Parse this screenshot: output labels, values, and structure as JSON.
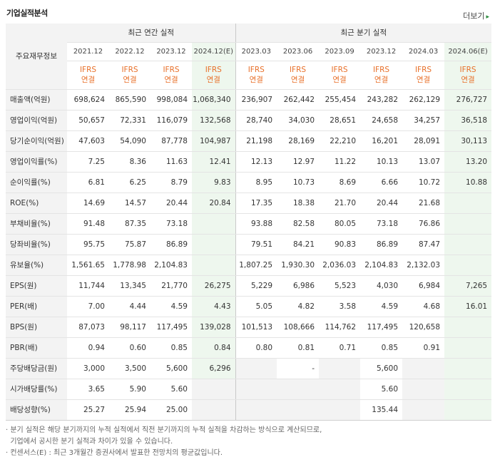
{
  "header": {
    "title": "기업실적분석",
    "more_label": "더보기",
    "more_arrow": "▸"
  },
  "table": {
    "corner_label": "주요재무정보",
    "groups": [
      "최근 연간 실적",
      "최근 분기 실적"
    ],
    "periods": [
      "2021.12",
      "2022.12",
      "2023.12",
      "2024.12(E)",
      "2023.03",
      "2023.06",
      "2023.09",
      "2023.12",
      "2024.03",
      "2024.06(E)"
    ],
    "basis": [
      "IFRS\n연결",
      "IFRS\n연결",
      "IFRS\n연결",
      "IFRS\n연결",
      "IFRS\n연결",
      "IFRS\n연결",
      "IFRS\n연결",
      "IFRS\n연결",
      "IFRS\n연결",
      "IFRS\n연결"
    ],
    "rows": [
      {
        "label": "매출액(억원)",
        "values": [
          "698,624",
          "865,590",
          "998,084",
          "1,068,340",
          "236,907",
          "262,442",
          "255,454",
          "243,282",
          "262,129",
          "276,727"
        ]
      },
      {
        "label": "영업이익(억원)",
        "values": [
          "50,657",
          "72,331",
          "116,079",
          "132,568",
          "28,740",
          "34,030",
          "28,651",
          "24,658",
          "34,257",
          "36,518"
        ]
      },
      {
        "label": "당기순이익(억원)",
        "values": [
          "47,603",
          "54,090",
          "87,778",
          "104,987",
          "21,198",
          "28,169",
          "22,210",
          "16,201",
          "28,091",
          "30,113"
        ]
      },
      {
        "label": "영업이익률(%)",
        "values": [
          "7.25",
          "8.36",
          "11.63",
          "12.41",
          "12.13",
          "12.97",
          "11.22",
          "10.13",
          "13.07",
          "13.20"
        ]
      },
      {
        "label": "순이익률(%)",
        "values": [
          "6.81",
          "6.25",
          "8.79",
          "9.83",
          "8.95",
          "10.73",
          "8.69",
          "6.66",
          "10.72",
          "10.88"
        ]
      },
      {
        "label": "ROE(%)",
        "values": [
          "14.69",
          "14.57",
          "20.44",
          "20.84",
          "17.35",
          "18.38",
          "21.70",
          "20.44",
          "21.68",
          ""
        ]
      },
      {
        "label": "부채비율(%)",
        "values": [
          "91.48",
          "87.35",
          "73.18",
          "",
          "93.88",
          "82.58",
          "80.05",
          "73.18",
          "76.86",
          ""
        ]
      },
      {
        "label": "당좌비율(%)",
        "values": [
          "95.75",
          "75.87",
          "86.89",
          "",
          "79.51",
          "84.21",
          "90.83",
          "86.89",
          "87.47",
          ""
        ]
      },
      {
        "label": "유보율(%)",
        "values": [
          "1,561.65",
          "1,778.98",
          "2,104.83",
          "",
          "1,807.25",
          "1,930.30",
          "2,036.03",
          "2,104.83",
          "2,132.03",
          ""
        ]
      },
      {
        "label": "EPS(원)",
        "values": [
          "11,744",
          "13,345",
          "21,770",
          "26,275",
          "5,229",
          "6,986",
          "5,523",
          "4,030",
          "6,984",
          "7,265"
        ]
      },
      {
        "label": "PER(배)",
        "values": [
          "7.00",
          "4.44",
          "4.59",
          "4.43",
          "5.05",
          "4.82",
          "3.58",
          "4.59",
          "4.68",
          "16.01"
        ]
      },
      {
        "label": "BPS(원)",
        "values": [
          "87,073",
          "98,117",
          "117,495",
          "139,028",
          "101,513",
          "108,666",
          "114,762",
          "117,495",
          "120,658",
          ""
        ]
      },
      {
        "label": "PBR(배)",
        "values": [
          "0.94",
          "0.60",
          "0.85",
          "0.84",
          "0.80",
          "0.81",
          "0.71",
          "0.85",
          "0.91",
          ""
        ]
      },
      {
        "label": "주당배당금(원)",
        "values": [
          "3,000",
          "3,500",
          "5,600",
          "6,296",
          "",
          "-",
          "",
          "5,600",
          "",
          ""
        ]
      },
      {
        "label": "시가배당률(%)",
        "values": [
          "3.65",
          "5.90",
          "5.60",
          "",
          "",
          "",
          "",
          "5.60",
          "",
          ""
        ]
      },
      {
        "label": "배당성향(%)",
        "values": [
          "25.27",
          "25.94",
          "25.00",
          "",
          "",
          "",
          "",
          "135.44",
          "",
          ""
        ]
      }
    ]
  },
  "notes": [
    "· 분기 실적은 해당 분기까지의 누적 실적에서 직전 분기까지의 누적 실적을 차감하는 방식으로 계산되므로,",
    "  기업에서 공시한 분기 실적과 차이가 있을 수 있습니다.",
    "· 컨센서스(E) : 최근 3개월간 증권사에서 발표한 전망치의 평균값입니다."
  ],
  "colors": {
    "ifrs": "#e8702a",
    "estimate_bg": "#eef7ee",
    "label_bg": "#f3f3f3"
  }
}
